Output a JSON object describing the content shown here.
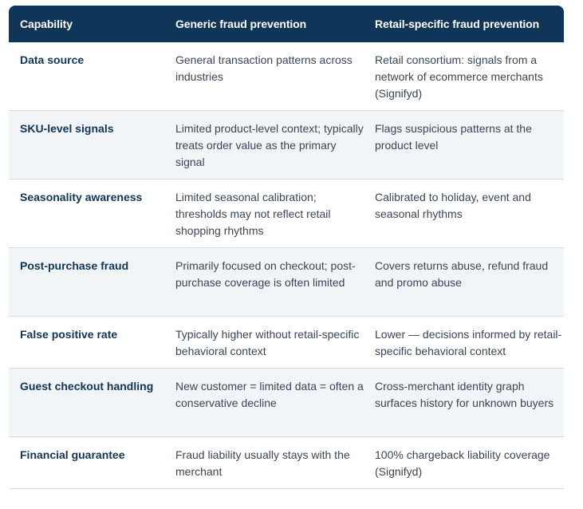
{
  "table": {
    "headers": {
      "capability": "Capability",
      "generic": "Generic fraud prevention",
      "retail": "Retail-specific fraud prevention"
    },
    "rows": [
      {
        "capability": "Data source",
        "generic": "General transaction patterns across industries",
        "retail": "Retail consortium: signals from a network of ecommerce merchants (Signifyd)"
      },
      {
        "capability": "SKU-level signals",
        "generic": "Limited product-level context; typically treats order value as the primary signal",
        "retail": "Flags suspicious patterns at the product level"
      },
      {
        "capability": "Seasonality awareness",
        "generic": "Limited seasonal calibration; thresholds may not reflect retail shopping rhythms",
        "retail": "Calibrated to holiday, event and seasonal rhythms"
      },
      {
        "capability": "Post-purchase fraud",
        "generic": "Primarily focused on checkout; post-purchase coverage is often limited",
        "retail": "Covers returns abuse, refund fraud and promo abuse"
      },
      {
        "capability": "False positive rate",
        "generic": "Typically higher without retail-specific behavioral context",
        "retail": "Lower — decisions informed by retail-specific behavioral context"
      },
      {
        "capability": "Guest checkout handling",
        "generic": "New customer = limited data = often a conservative decline",
        "retail": "Cross-merchant identity graph surfaces history for unknown buyers"
      },
      {
        "capability": "Financial guarantee",
        "generic": "Fraud liability usually stays with the merchant",
        "retail": "100% chargeback liability coverage (Signifyd)"
      }
    ]
  },
  "colors": {
    "header_bg": "#0f3558",
    "alt_row_bg": "#f2f5f8",
    "capability_text": "#0f3558"
  }
}
